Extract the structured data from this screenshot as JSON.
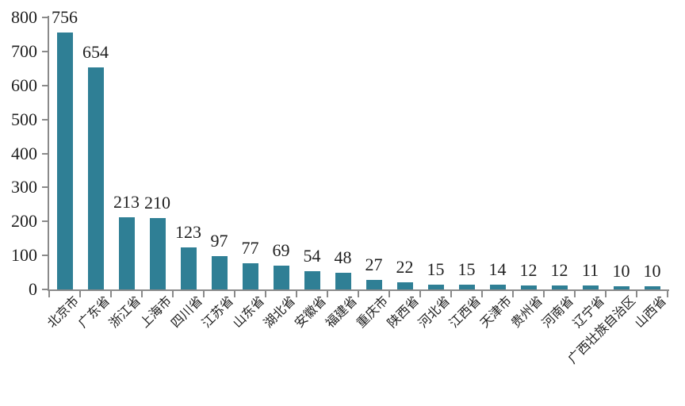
{
  "chart_data": {
    "type": "bar",
    "title": "",
    "xlabel": "",
    "ylabel": "",
    "categories": [
      "北京市",
      "广东省",
      "浙江省",
      "上海市",
      "四川省",
      "江苏省",
      "山东省",
      "湖北省",
      "安徽省",
      "福建省",
      "重庆市",
      "陕西省",
      "河北省",
      "江西省",
      "天津市",
      "贵州省",
      "河南省",
      "辽宁省",
      "广西壮族自治区",
      "山西省"
    ],
    "values": [
      756,
      654,
      213,
      210,
      123,
      97,
      77,
      69,
      54,
      48,
      27,
      22,
      15,
      15,
      14,
      12,
      12,
      11,
      10,
      10
    ],
    "ylim": [
      0,
      800
    ],
    "yticks": [
      0,
      100,
      200,
      300,
      400,
      500,
      600,
      700,
      800
    ],
    "grid": false,
    "legend": false,
    "data_labels": true,
    "bar_color": "#2F7F95",
    "axis_color": "#8a8a8a",
    "text_color": "#1f1f1f",
    "x_label_rotation_deg": 45
  }
}
